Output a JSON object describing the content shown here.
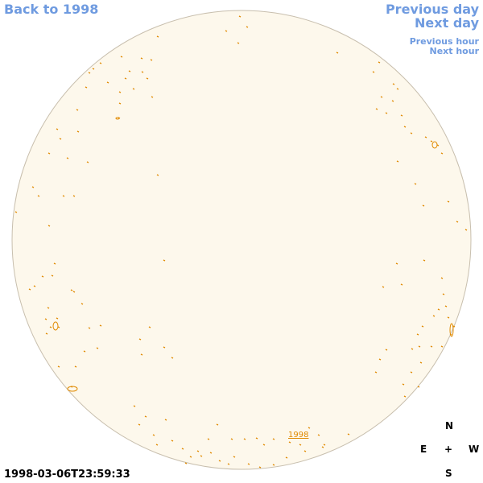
{
  "header": {
    "back_link": "Back to 1998",
    "previous_day": "Previous day",
    "next_day": "Next day",
    "previous_hour": "Previous hour",
    "next_hour": "Next hour"
  },
  "map": {
    "label": "1998"
  },
  "compass": {
    "north": "N",
    "east": "E",
    "center": "+",
    "west": "W",
    "south": "S"
  },
  "timestamp": "1998-03-06T23:59:33"
}
